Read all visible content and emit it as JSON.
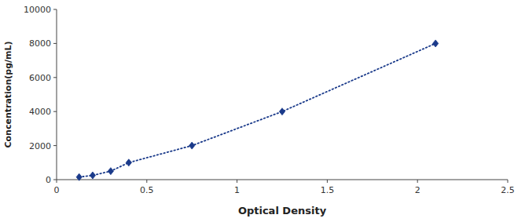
{
  "chart_data": {
    "type": "line",
    "xlabel": "Optical Density",
    "ylabel": "Concentration(pg/mL)",
    "x": [
      0.125,
      0.2,
      0.3,
      0.4,
      0.75,
      1.25,
      2.1
    ],
    "values": [
      150,
      250,
      500,
      1000,
      2000,
      4000,
      8000
    ],
    "color": "#1a3a8a",
    "marker": "diamond",
    "line_style": "dotted",
    "xlim": [
      0,
      2.5
    ],
    "ylim": [
      0,
      10000
    ],
    "xticks": [
      0,
      0.5,
      1,
      1.5,
      2,
      2.5
    ],
    "yticks": [
      0,
      2000,
      4000,
      6000,
      8000,
      10000
    ],
    "grid": false
  }
}
